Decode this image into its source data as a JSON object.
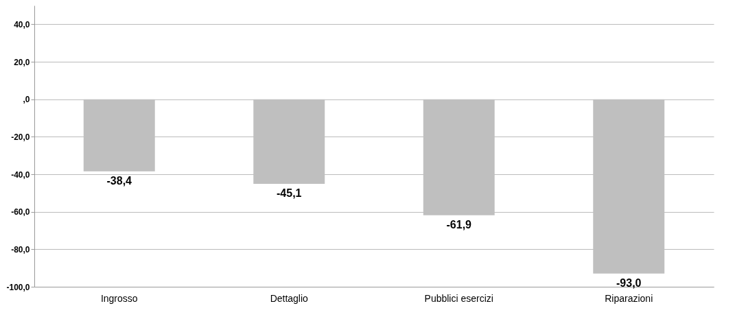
{
  "chart_data": {
    "type": "bar",
    "categories": [
      "Ingrosso",
      "Dettaglio",
      "Pubblici esercizi",
      "Riparazioni"
    ],
    "values": [
      -38.4,
      -45.1,
      -61.9,
      -93.0
    ],
    "value_labels": [
      "-38,4",
      "-45,1",
      "-61,9",
      "-93,0"
    ],
    "color": "#bfbfbf",
    "ylim": [
      -100,
      50
    ],
    "yticks": [
      {
        "value": 40,
        "label": "40,0"
      },
      {
        "value": 20,
        "label": "20,0"
      },
      {
        "value": 0,
        "label": ",0"
      },
      {
        "value": -20,
        "label": "-20,0"
      },
      {
        "value": -40,
        "label": "-40,0"
      },
      {
        "value": -60,
        "label": "-60,0"
      },
      {
        "value": -80,
        "label": "-80,0"
      },
      {
        "value": -100,
        "label": "-100,0"
      }
    ],
    "grid": "y"
  }
}
